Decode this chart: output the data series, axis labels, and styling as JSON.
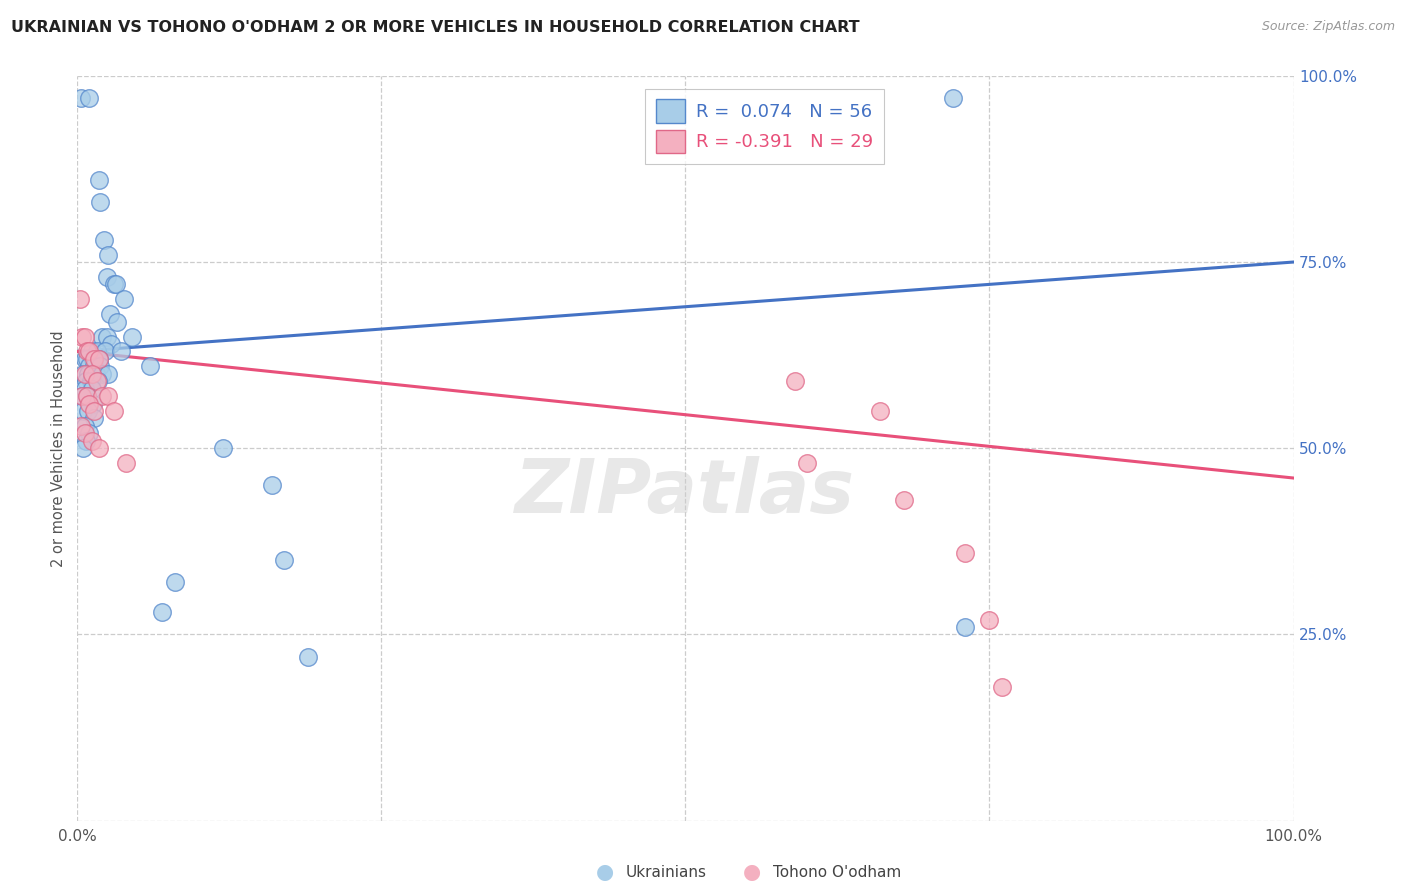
{
  "title": "UKRAINIAN VS TOHONO O'ODHAM 2 OR MORE VEHICLES IN HOUSEHOLD CORRELATION CHART",
  "source": "Source: ZipAtlas.com",
  "ylabel": "2 or more Vehicles in Household",
  "xlim": [
    0,
    1.0
  ],
  "ylim": [
    0,
    1.0
  ],
  "blue_color": "#A8CDE8",
  "blue_edge": "#5588CC",
  "pink_color": "#F4B0C0",
  "pink_edge": "#E06888",
  "line_blue_color": "#4472C4",
  "line_pink_color": "#E8507A",
  "r_blue": "0.074",
  "n_blue": "56",
  "r_pink": "-0.391",
  "n_pink": "29",
  "blue_points": [
    [
      0.003,
      0.97
    ],
    [
      0.01,
      0.97
    ],
    [
      0.018,
      0.86
    ],
    [
      0.019,
      0.83
    ],
    [
      0.022,
      0.78
    ],
    [
      0.025,
      0.76
    ],
    [
      0.024,
      0.73
    ],
    [
      0.03,
      0.72
    ],
    [
      0.032,
      0.72
    ],
    [
      0.038,
      0.7
    ],
    [
      0.027,
      0.68
    ],
    [
      0.033,
      0.67
    ],
    [
      0.02,
      0.65
    ],
    [
      0.024,
      0.65
    ],
    [
      0.045,
      0.65
    ],
    [
      0.028,
      0.64
    ],
    [
      0.012,
      0.63
    ],
    [
      0.016,
      0.63
    ],
    [
      0.023,
      0.63
    ],
    [
      0.036,
      0.63
    ],
    [
      0.006,
      0.62
    ],
    [
      0.008,
      0.62
    ],
    [
      0.013,
      0.62
    ],
    [
      0.018,
      0.62
    ],
    [
      0.01,
      0.61
    ],
    [
      0.014,
      0.61
    ],
    [
      0.019,
      0.61
    ],
    [
      0.06,
      0.61
    ],
    [
      0.005,
      0.6
    ],
    [
      0.009,
      0.6
    ],
    [
      0.015,
      0.6
    ],
    [
      0.02,
      0.6
    ],
    [
      0.025,
      0.6
    ],
    [
      0.007,
      0.59
    ],
    [
      0.011,
      0.59
    ],
    [
      0.017,
      0.59
    ],
    [
      0.006,
      0.58
    ],
    [
      0.012,
      0.58
    ],
    [
      0.004,
      0.57
    ],
    [
      0.008,
      0.57
    ],
    [
      0.013,
      0.56
    ],
    [
      0.005,
      0.55
    ],
    [
      0.009,
      0.55
    ],
    [
      0.014,
      0.54
    ],
    [
      0.006,
      0.53
    ],
    [
      0.01,
      0.52
    ],
    [
      0.007,
      0.51
    ],
    [
      0.005,
      0.5
    ],
    [
      0.12,
      0.5
    ],
    [
      0.16,
      0.45
    ],
    [
      0.17,
      0.35
    ],
    [
      0.08,
      0.32
    ],
    [
      0.07,
      0.28
    ],
    [
      0.73,
      0.26
    ],
    [
      0.19,
      0.22
    ],
    [
      0.72,
      0.97
    ]
  ],
  "pink_points": [
    [
      0.002,
      0.7
    ],
    [
      0.004,
      0.65
    ],
    [
      0.006,
      0.65
    ],
    [
      0.008,
      0.63
    ],
    [
      0.01,
      0.63
    ],
    [
      0.014,
      0.62
    ],
    [
      0.018,
      0.62
    ],
    [
      0.006,
      0.6
    ],
    [
      0.012,
      0.6
    ],
    [
      0.016,
      0.59
    ],
    [
      0.004,
      0.57
    ],
    [
      0.008,
      0.57
    ],
    [
      0.02,
      0.57
    ],
    [
      0.025,
      0.57
    ],
    [
      0.01,
      0.56
    ],
    [
      0.014,
      0.55
    ],
    [
      0.03,
      0.55
    ],
    [
      0.003,
      0.53
    ],
    [
      0.006,
      0.52
    ],
    [
      0.012,
      0.51
    ],
    [
      0.018,
      0.5
    ],
    [
      0.04,
      0.48
    ],
    [
      0.59,
      0.59
    ],
    [
      0.6,
      0.48
    ],
    [
      0.66,
      0.55
    ],
    [
      0.68,
      0.43
    ],
    [
      0.73,
      0.36
    ],
    [
      0.75,
      0.27
    ],
    [
      0.76,
      0.18
    ]
  ],
  "blue_line": [
    [
      0.0,
      0.63
    ],
    [
      1.0,
      0.75
    ]
  ],
  "pink_line": [
    [
      0.0,
      0.63
    ],
    [
      1.0,
      0.46
    ]
  ]
}
